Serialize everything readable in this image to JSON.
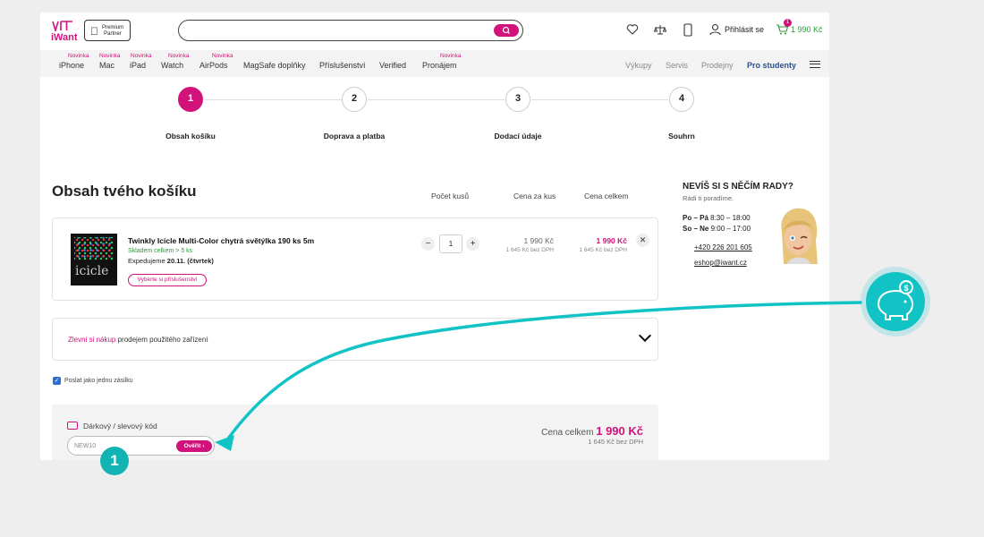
{
  "colors": {
    "brand": "#d1127a",
    "accent_teal": "#12c3c6",
    "stock_green": "#2a9a3a",
    "link_blue": "#2b4f8f"
  },
  "header": {
    "logo_text": "iWant",
    "partner_line1": "Premium",
    "partner_line2": "Partner",
    "search_placeholder": "",
    "login_label": "Přihlásit se",
    "cart_count": "1",
    "cart_total": "1 990 Kč",
    "icons": [
      "heart-icon",
      "scales-icon",
      "phone-icon",
      "user-icon",
      "cart-icon"
    ]
  },
  "nav": {
    "new_label": "Novinka",
    "items": [
      {
        "label": "iPhone",
        "new": true
      },
      {
        "label": "Mac",
        "new": true
      },
      {
        "label": "iPad",
        "new": true
      },
      {
        "label": "Watch",
        "new": true
      },
      {
        "label": "AirPods",
        "new": true
      },
      {
        "label": "MagSafe doplňky",
        "new": false
      },
      {
        "label": "Příslušenství",
        "new": false
      },
      {
        "label": "Verified",
        "new": false
      },
      {
        "label": "Pronájem",
        "new": true
      }
    ],
    "right": [
      "Výkupy",
      "Servis",
      "Prodejny",
      "Pro studenty"
    ]
  },
  "steps": [
    {
      "num": "1",
      "label": "Obsah košíku"
    },
    {
      "num": "2",
      "label": "Doprava a platba"
    },
    {
      "num": "3",
      "label": "Dodací údaje"
    },
    {
      "num": "4",
      "label": "Souhrn"
    }
  ],
  "cart": {
    "title": "Obsah tvého košíku",
    "col_qty": "Počet kusů",
    "col_unit": "Cena za kus",
    "col_total": "Cena celkem",
    "item": {
      "img_text": "icicle",
      "name": "Twinkly Icicle Multi-Color chytrá světýlka 190 ks 5m",
      "stock": "Skladem celkem > 5 ks",
      "expedition_prefix": "Expedujeme ",
      "expedition_date": "20.11. (čtvrtek)",
      "accessories_btn": "Vyberte si příslušenství",
      "qty": "1",
      "unit_price": "1 990 Kč",
      "unit_price_novat": "1 645 Kč bez DPH",
      "total_price": "1 990 Kč",
      "total_price_novat": "1 645 Kč bez DPH"
    },
    "trade_pink": "Zlevni si nákup",
    "trade_rest": " prodejem použitého zařízení",
    "ship_together": "Poslat jako jednu zásilku",
    "code_label": "Dárkový / slevový kód",
    "code_value": "NEW10",
    "verify_btn": "Ověřit ›",
    "total_label": "Cena celkem ",
    "total_value": "1 990 Kč",
    "total_novat": "1 645 Kč bez DPH"
  },
  "help": {
    "title": "NEVÍŠ SI S NĚČÍM RADY?",
    "subtitle": "Rádi ti poradíme.",
    "weekday_days": "Po – Pá",
    "weekday_hours": " 8:30 – 18:00",
    "weekend_days": "So – Ne",
    "weekend_hours": " 9:00 – 17:00",
    "phone": "+420 226 201 605",
    "email": "eshop@iwant.cz"
  },
  "annotation": {
    "marker": "1"
  }
}
